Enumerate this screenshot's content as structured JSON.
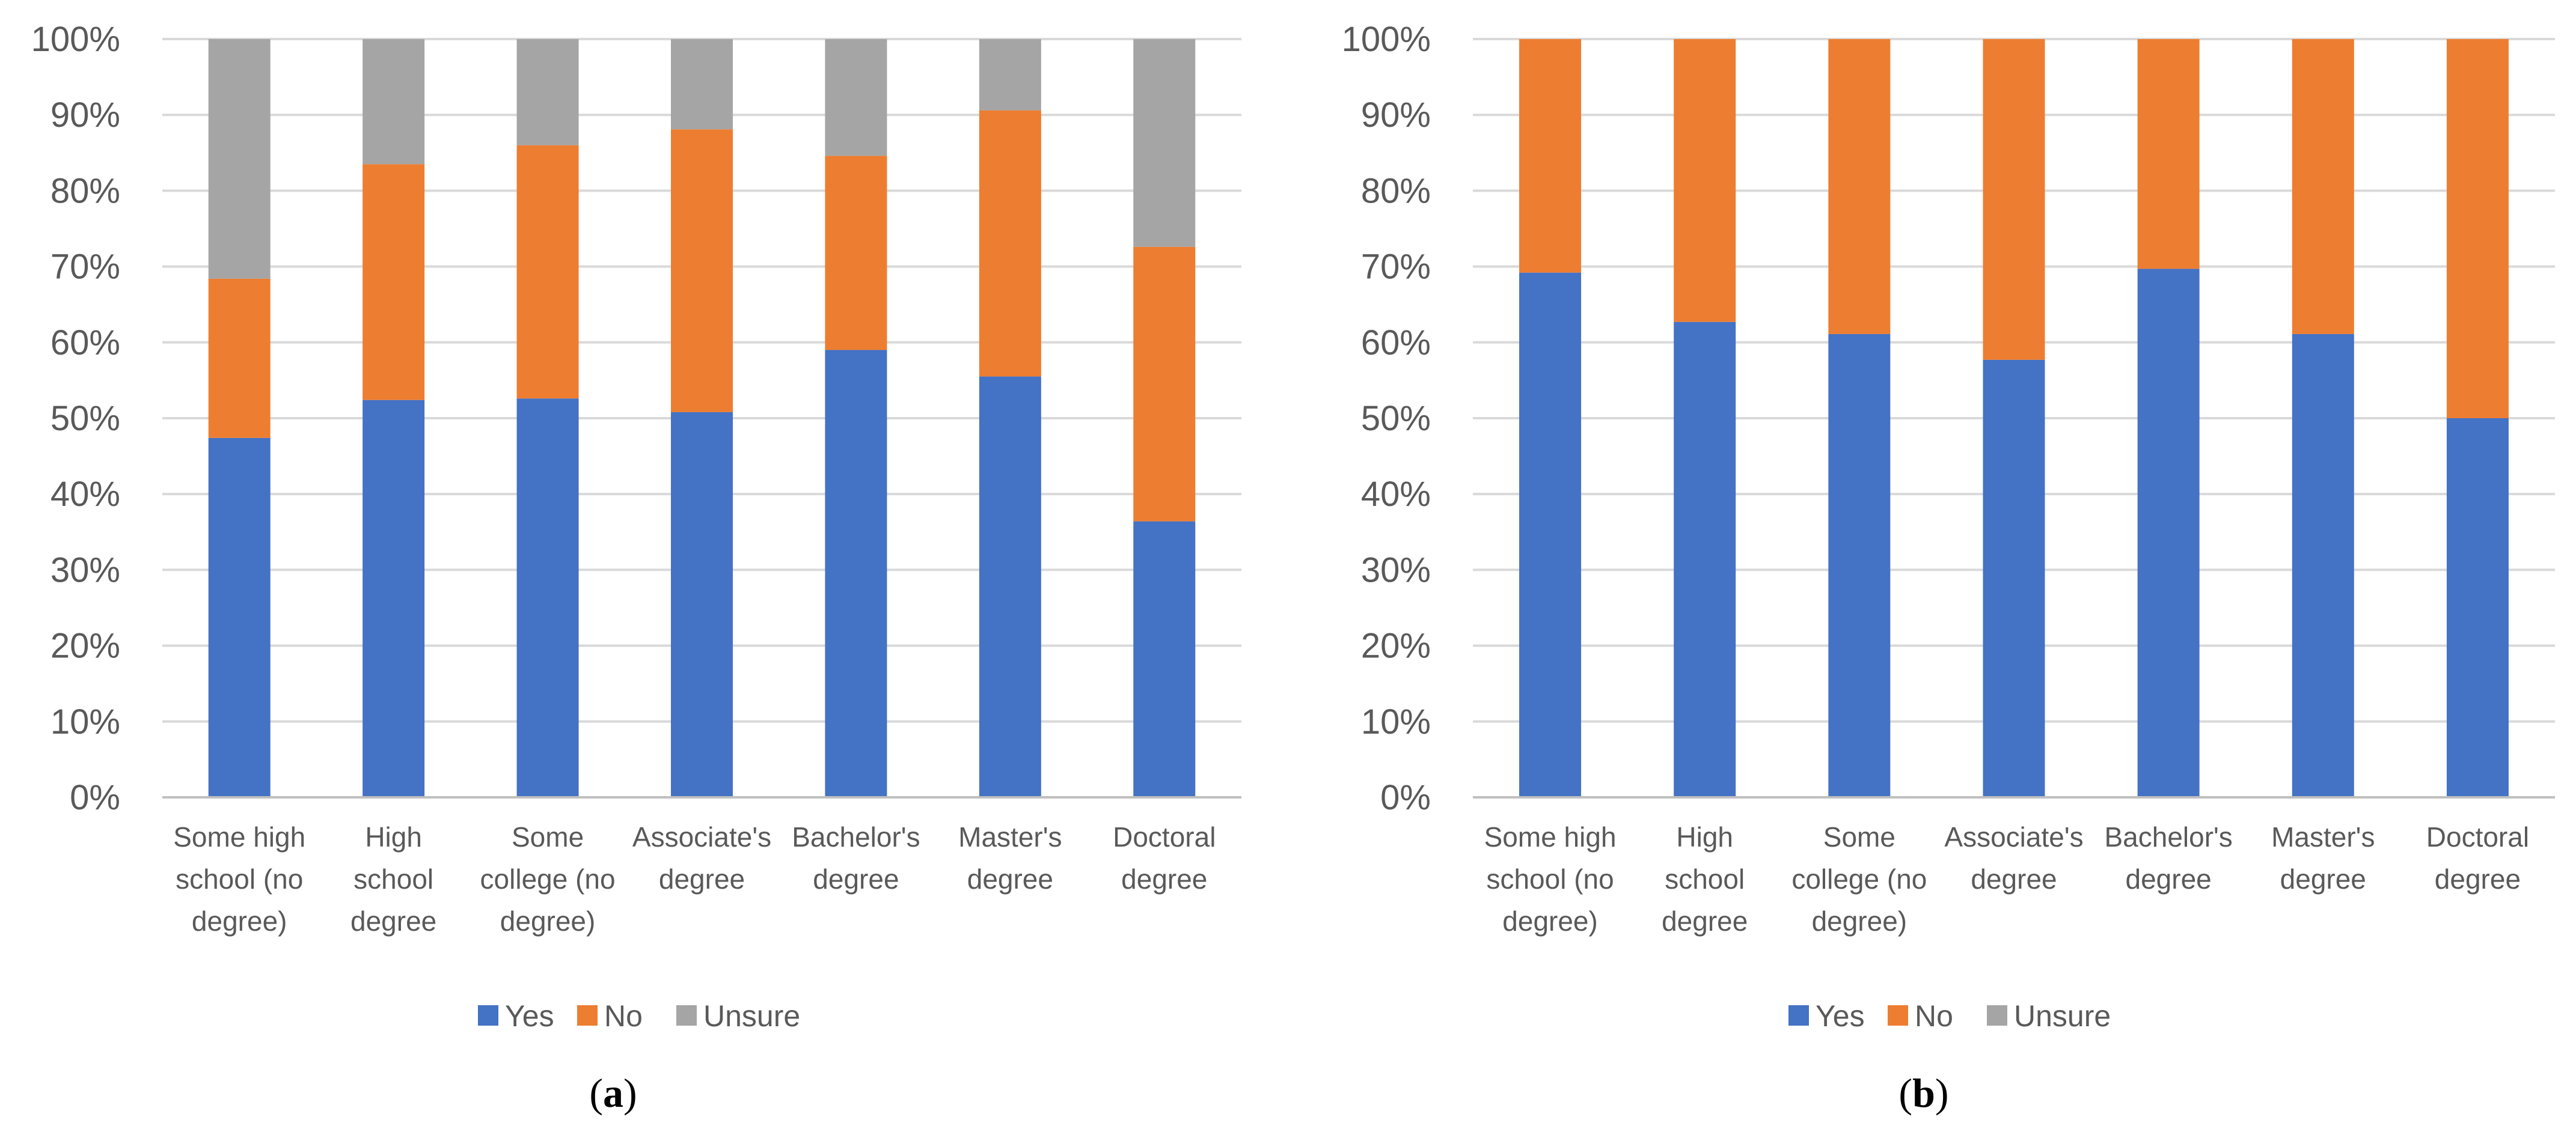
{
  "chart_data": [
    {
      "type": "bar",
      "stacked": true,
      "panel_label": "a",
      "categories": [
        "Some high school (no degree)",
        "High school degree",
        "Some college (no degree)",
        "Associate's degree",
        "Bachelor's degree",
        "Master's degree",
        "Doctoral degree"
      ],
      "category_lines": [
        [
          "Some high",
          "school (no",
          "degree)"
        ],
        [
          "High",
          "school",
          "degree"
        ],
        [
          "Some",
          "college (no",
          "degree)"
        ],
        [
          "Associate's",
          "degree"
        ],
        [
          "Bachelor's",
          "degree"
        ],
        [
          "Master's",
          "degree"
        ],
        [
          "Doctoral",
          "degree"
        ]
      ],
      "series": [
        {
          "name": "Yes",
          "color": "#4472c4",
          "values": [
            47.4,
            52.4,
            52.6,
            50.8,
            59.0,
            55.5,
            36.4
          ]
        },
        {
          "name": "No",
          "color": "#ed7d31",
          "values": [
            21.0,
            31.1,
            33.4,
            37.3,
            25.6,
            35.1,
            36.2
          ]
        },
        {
          "name": "Unsure",
          "color": "#a5a5a5",
          "values": [
            31.6,
            16.5,
            14.0,
            11.9,
            15.4,
            9.4,
            27.4
          ]
        }
      ],
      "ylim": [
        0,
        100
      ],
      "yticks": [
        "0%",
        "10%",
        "20%",
        "30%",
        "40%",
        "50%",
        "60%",
        "70%",
        "80%",
        "90%",
        "100%"
      ],
      "legend_position": "bottom",
      "grid": true,
      "title": "",
      "xlabel": "",
      "ylabel": ""
    },
    {
      "type": "bar",
      "stacked": true,
      "panel_label": "b",
      "categories": [
        "Some high school (no degree)",
        "High school degree",
        "Some college (no degree)",
        "Associate's degree",
        "Bachelor's degree",
        "Master's degree",
        "Doctoral degree"
      ],
      "category_lines": [
        [
          "Some high",
          "school (no",
          "degree)"
        ],
        [
          "High",
          "school",
          "degree"
        ],
        [
          "Some",
          "college (no",
          "degree)"
        ],
        [
          "Associate's",
          "degree"
        ],
        [
          "Bachelor's",
          "degree"
        ],
        [
          "Master's",
          "degree"
        ],
        [
          "Doctoral",
          "degree"
        ]
      ],
      "series": [
        {
          "name": "Yes",
          "color": "#4472c4",
          "values": [
            69.2,
            62.7,
            61.1,
            57.7,
            69.7,
            61.1,
            50.0
          ]
        },
        {
          "name": "No",
          "color": "#ed7d31",
          "values": [
            30.8,
            37.3,
            38.9,
            42.3,
            30.3,
            38.9,
            50.0
          ]
        },
        {
          "name": "Unsure",
          "color": "#a5a5a5",
          "values": [
            0,
            0,
            0,
            0,
            0,
            0,
            0
          ]
        }
      ],
      "ylim": [
        0,
        100
      ],
      "yticks": [
        "0%",
        "10%",
        "20%",
        "30%",
        "40%",
        "50%",
        "60%",
        "70%",
        "80%",
        "90%",
        "100%"
      ],
      "legend_position": "bottom",
      "grid": true,
      "title": "",
      "xlabel": "",
      "ylabel": ""
    }
  ]
}
